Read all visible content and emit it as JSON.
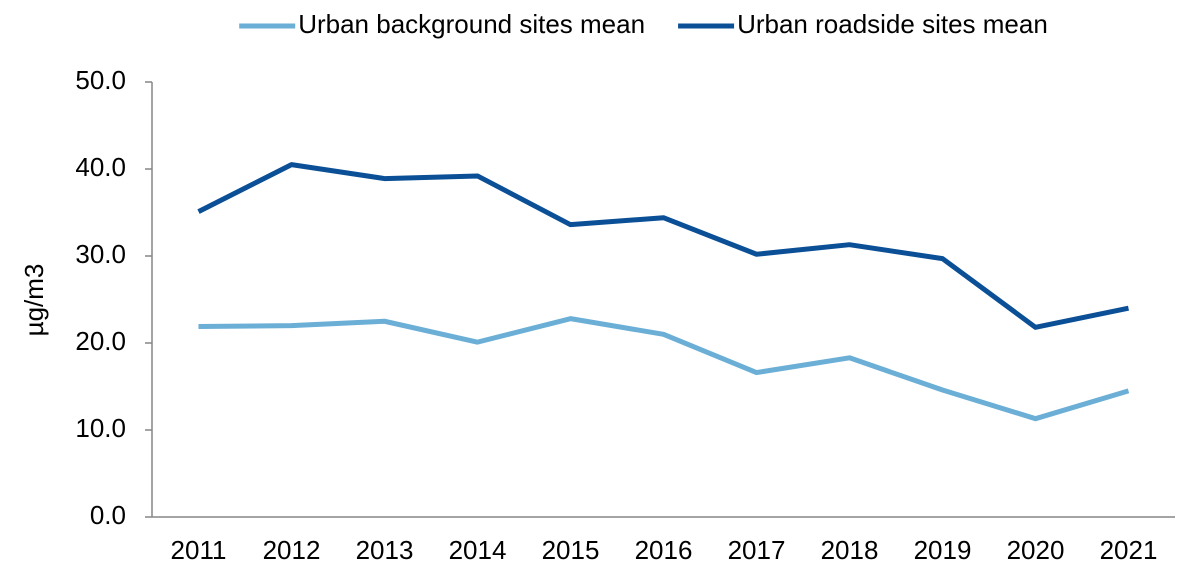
{
  "chart_data": {
    "type": "line",
    "y_label": "µg/m3",
    "categories": [
      "2011",
      "2012",
      "2013",
      "2014",
      "2015",
      "2016",
      "2017",
      "2018",
      "2019",
      "2020",
      "2021"
    ],
    "series": [
      {
        "name": "Urban background sites mean",
        "color": "#6baed6",
        "values": [
          21.9,
          22.0,
          22.5,
          20.1,
          22.8,
          21.0,
          16.6,
          18.3,
          14.6,
          11.3,
          14.5
        ]
      },
      {
        "name": "Urban roadside sites mean",
        "color": "#0b4f96",
        "values": [
          35.1,
          40.5,
          38.9,
          39.2,
          33.6,
          34.4,
          30.2,
          31.3,
          29.7,
          21.8,
          24.0
        ]
      }
    ],
    "ylim": [
      0,
      50
    ],
    "yticks": [
      {
        "value": 0,
        "label": "0.0"
      },
      {
        "value": 10,
        "label": "10.0"
      },
      {
        "value": 20,
        "label": "20.0"
      },
      {
        "value": 30,
        "label": "30.0"
      },
      {
        "value": 40,
        "label": "40.0"
      },
      {
        "value": 50,
        "label": "50.0"
      }
    ],
    "grid": false,
    "legend": "top"
  }
}
